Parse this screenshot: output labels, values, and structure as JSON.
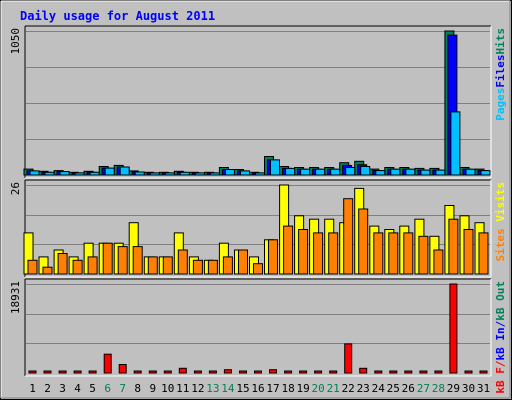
{
  "chart_data": {
    "type": "bar",
    "title": "Daily usage for August 2011",
    "categories": [
      "1",
      "2",
      "3",
      "4",
      "5",
      "6",
      "7",
      "8",
      "9",
      "10",
      "11",
      "12",
      "13",
      "14",
      "15",
      "16",
      "17",
      "18",
      "19",
      "20",
      "21",
      "22",
      "23",
      "24",
      "25",
      "26",
      "27",
      "28",
      "29",
      "30",
      "31"
    ],
    "weekend_days": [
      "6",
      "7",
      "13",
      "14",
      "20",
      "21",
      "27",
      "28"
    ],
    "panels": [
      {
        "id": "hits",
        "ymax_label": "1050",
        "ymax": 1050,
        "series": [
          {
            "name": "Hits",
            "color": "#00805c",
            "values": [
              43,
              27,
              32,
              20,
              27,
              62,
              70,
              30,
              20,
              20,
              27,
              20,
              20,
              55,
              40,
              20,
              135,
              62,
              55,
              55,
              55,
              90,
              100,
              43,
              55,
              55,
              48,
              48,
              1050,
              55,
              43
            ]
          },
          {
            "name": "Files",
            "color": "#0000ff",
            "values": [
              30,
              20,
              25,
              15,
              20,
              50,
              58,
              22,
              15,
              15,
              20,
              15,
              15,
              40,
              30,
              15,
              110,
              48,
              42,
              42,
              42,
              70,
              75,
              32,
              42,
              42,
              36,
              36,
              1020,
              42,
              32
            ]
          },
          {
            "name": "Pages",
            "color": "#00c0ff",
            "values": [
              30,
              20,
              25,
              15,
              20,
              50,
              58,
              22,
              15,
              15,
              20,
              15,
              15,
              40,
              30,
              15,
              110,
              48,
              42,
              42,
              42,
              55,
              62,
              32,
              42,
              42,
              36,
              36,
              460,
              42,
              32
            ]
          }
        ],
        "axis_labels": [
          {
            "text": "Pages",
            "color": "#00c0ff"
          },
          {
            "text": "Files",
            "color": "#0000ff"
          },
          {
            "text": "Hits",
            "color": "#00805c"
          }
        ]
      },
      {
        "id": "visits",
        "ymax_label": "26",
        "ymax": 26,
        "series": [
          {
            "name": "Visits",
            "color": "#ffff00",
            "values": [
              12,
              5,
              7,
              5,
              9,
              9,
              9,
              15,
              5,
              5,
              12,
              5,
              4,
              9,
              7,
              5,
              10,
              26,
              17,
              16,
              16,
              15,
              25,
              14,
              13,
              14,
              16,
              11,
              20,
              17,
              15
            ]
          },
          {
            "name": "Sites",
            "color": "#ff8000",
            "values": [
              4,
              2,
              6,
              4,
              5,
              9,
              8,
              8,
              5,
              5,
              7,
              4,
              4,
              5,
              7,
              3,
              10,
              14,
              13,
              12,
              12,
              22,
              19,
              12,
              12,
              12,
              11,
              7,
              16,
              13,
              12
            ]
          }
        ],
        "axis_labels": [
          {
            "text": "Sites",
            "color": "#ff8000"
          },
          {
            "text": "/",
            "color": "#c0c0c0"
          },
          {
            "text": "Visits",
            "color": "#ffff00"
          }
        ]
      },
      {
        "id": "kbytes",
        "ymax_label": "18931",
        "ymax": 18931,
        "series": [
          {
            "name": "kB F",
            "color": "#ff0000",
            "values": [
              100,
              100,
              100,
              100,
              100,
              4000,
              1800,
              100,
              100,
              100,
              1000,
              100,
              100,
              700,
              100,
              100,
              700,
              100,
              100,
              100,
              100,
              6200,
              1000,
              100,
              100,
              100,
              100,
              100,
              18931,
              100,
              100
            ]
          }
        ],
        "axis_labels": [
          {
            "text": "kB F",
            "color": "#ff0000"
          },
          {
            "text": "/",
            "color": "#ff0000"
          },
          {
            "text": "kB In",
            "color": "#0000ff"
          },
          {
            "text": "/",
            "color": "#0000ff"
          },
          {
            "text": "kB Out",
            "color": "#00805c"
          }
        ]
      }
    ],
    "colors": {
      "background": "#c0c0c0",
      "title": "#0000ff",
      "weekend_label": "#00805c",
      "weekday_label": "#000000",
      "gridline": "#808080"
    }
  }
}
